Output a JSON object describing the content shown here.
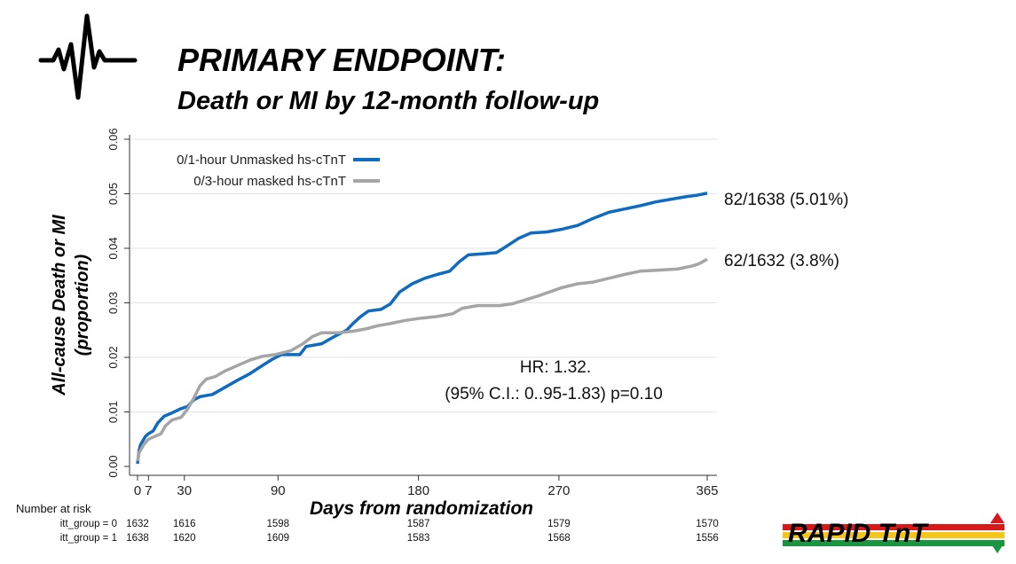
{
  "header": {
    "title": "PRIMARY ENDPOINT:",
    "subtitle": "Death or MI by 12-month follow-up",
    "icon": "heartbeat-icon"
  },
  "chart_data": {
    "type": "line",
    "xlabel": "Days from randomization",
    "ylabel_line1": "All-cause Death or MI",
    "ylabel_line2": "(proportion)",
    "xlim": [
      0,
      365
    ],
    "ylim": [
      0,
      0.06
    ],
    "x_ticks": [
      {
        "value": 0,
        "label": "0"
      },
      {
        "value": 7,
        "label": "7"
      },
      {
        "value": 30,
        "label": "30"
      },
      {
        "value": 90,
        "label": "90"
      },
      {
        "value": 180,
        "label": "180"
      },
      {
        "value": 270,
        "label": "270"
      },
      {
        "value": 365,
        "label": "365"
      }
    ],
    "y_ticks": [
      {
        "value": 0,
        "label": "0.00"
      },
      {
        "value": 0.01,
        "label": "0.01"
      },
      {
        "value": 0.02,
        "label": "0.02"
      },
      {
        "value": 0.03,
        "label": "0.03"
      },
      {
        "value": 0.04,
        "label": "0.04"
      },
      {
        "value": 0.05,
        "label": "0.05"
      },
      {
        "value": 0.06,
        "label": "0.06"
      }
    ],
    "grid": true,
    "legend_position": "top-left",
    "series": [
      {
        "name": "0/1-hour Unmasked hs-cTnT",
        "color": "#0f6bbf",
        "end_label": "82/1638 (5.01%)",
        "points": [
          [
            0,
            0.0005
          ],
          [
            1,
            0.003
          ],
          [
            2,
            0.004
          ],
          [
            3,
            0.0045
          ],
          [
            5,
            0.0055
          ],
          [
            7,
            0.006
          ],
          [
            10,
            0.0065
          ],
          [
            13,
            0.008
          ],
          [
            17,
            0.0092
          ],
          [
            22,
            0.0098
          ],
          [
            27,
            0.0105
          ],
          [
            32,
            0.011
          ],
          [
            36,
            0.0122
          ],
          [
            40,
            0.0128
          ],
          [
            48,
            0.0132
          ],
          [
            56,
            0.0145
          ],
          [
            64,
            0.0158
          ],
          [
            72,
            0.017
          ],
          [
            80,
            0.0185
          ],
          [
            86,
            0.0196
          ],
          [
            92,
            0.0205
          ],
          [
            104,
            0.0205
          ],
          [
            108,
            0.022
          ],
          [
            118,
            0.0225
          ],
          [
            126,
            0.0238
          ],
          [
            134,
            0.025
          ],
          [
            138,
            0.0262
          ],
          [
            143,
            0.0275
          ],
          [
            148,
            0.0285
          ],
          [
            156,
            0.0288
          ],
          [
            162,
            0.0298
          ],
          [
            168,
            0.032
          ],
          [
            176,
            0.0335
          ],
          [
            184,
            0.0345
          ],
          [
            192,
            0.0352
          ],
          [
            200,
            0.0358
          ],
          [
            206,
            0.0375
          ],
          [
            212,
            0.0388
          ],
          [
            222,
            0.039
          ],
          [
            230,
            0.0392
          ],
          [
            236,
            0.0403
          ],
          [
            244,
            0.0418
          ],
          [
            252,
            0.0428
          ],
          [
            262,
            0.043
          ],
          [
            272,
            0.0435
          ],
          [
            282,
            0.0442
          ],
          [
            292,
            0.0455
          ],
          [
            302,
            0.0466
          ],
          [
            312,
            0.0472
          ],
          [
            322,
            0.0478
          ],
          [
            332,
            0.0485
          ],
          [
            342,
            0.049
          ],
          [
            352,
            0.0495
          ],
          [
            358,
            0.0497
          ],
          [
            365,
            0.0501
          ]
        ]
      },
      {
        "name": "0/3-hour masked hs-cTnT",
        "color": "#a5a5a5",
        "end_label": "62/1632 (3.8%)",
        "points": [
          [
            0,
            0.001
          ],
          [
            1,
            0.0025
          ],
          [
            2,
            0.003
          ],
          [
            4,
            0.004
          ],
          [
            7,
            0.005
          ],
          [
            11,
            0.0055
          ],
          [
            15,
            0.006
          ],
          [
            18,
            0.0075
          ],
          [
            22,
            0.0085
          ],
          [
            28,
            0.009
          ],
          [
            32,
            0.0105
          ],
          [
            36,
            0.0125
          ],
          [
            40,
            0.0148
          ],
          [
            44,
            0.016
          ],
          [
            50,
            0.0165
          ],
          [
            56,
            0.0175
          ],
          [
            64,
            0.0185
          ],
          [
            72,
            0.0195
          ],
          [
            80,
            0.0202
          ],
          [
            88,
            0.0205
          ],
          [
            98,
            0.0212
          ],
          [
            106,
            0.0225
          ],
          [
            112,
            0.0238
          ],
          [
            118,
            0.0245
          ],
          [
            128,
            0.0245
          ],
          [
            138,
            0.0248
          ],
          [
            146,
            0.0252
          ],
          [
            154,
            0.0258
          ],
          [
            162,
            0.0262
          ],
          [
            172,
            0.0268
          ],
          [
            182,
            0.0272
          ],
          [
            192,
            0.0275
          ],
          [
            202,
            0.028
          ],
          [
            208,
            0.029
          ],
          [
            218,
            0.0295
          ],
          [
            232,
            0.0295
          ],
          [
            240,
            0.0298
          ],
          [
            248,
            0.0305
          ],
          [
            256,
            0.0312
          ],
          [
            264,
            0.032
          ],
          [
            272,
            0.0328
          ],
          [
            282,
            0.0335
          ],
          [
            292,
            0.0338
          ],
          [
            302,
            0.0345
          ],
          [
            312,
            0.0352
          ],
          [
            322,
            0.0358
          ],
          [
            334,
            0.036
          ],
          [
            346,
            0.0362
          ],
          [
            356,
            0.0368
          ],
          [
            360,
            0.0372
          ],
          [
            365,
            0.038
          ]
        ]
      }
    ],
    "annotations": {
      "hr_line1": "HR: 1.32.",
      "hr_line2": "(95% C.I.: 0..95-1.83) p=0.10"
    },
    "risk_table": {
      "header": "Number at risk",
      "rows": [
        {
          "label": "itt_group = 0",
          "values": [
            {
              "day": 0,
              "value": "1632"
            },
            {
              "day": 30,
              "value": "1616"
            },
            {
              "day": 90,
              "value": "1598"
            },
            {
              "day": 180,
              "value": "1587"
            },
            {
              "day": 270,
              "value": "1579"
            },
            {
              "day": 365,
              "value": "1570"
            }
          ]
        },
        {
          "label": "itt_group = 1",
          "values": [
            {
              "day": 0,
              "value": "1638"
            },
            {
              "day": 30,
              "value": "1620"
            },
            {
              "day": 90,
              "value": "1609"
            },
            {
              "day": 180,
              "value": "1583"
            },
            {
              "day": 270,
              "value": "1568"
            },
            {
              "day": 365,
              "value": "1556"
            }
          ]
        }
      ]
    }
  },
  "logo": {
    "text": "RAPID TnT",
    "colors": [
      "#d7191c",
      "#f5c518",
      "#1a9641"
    ]
  }
}
